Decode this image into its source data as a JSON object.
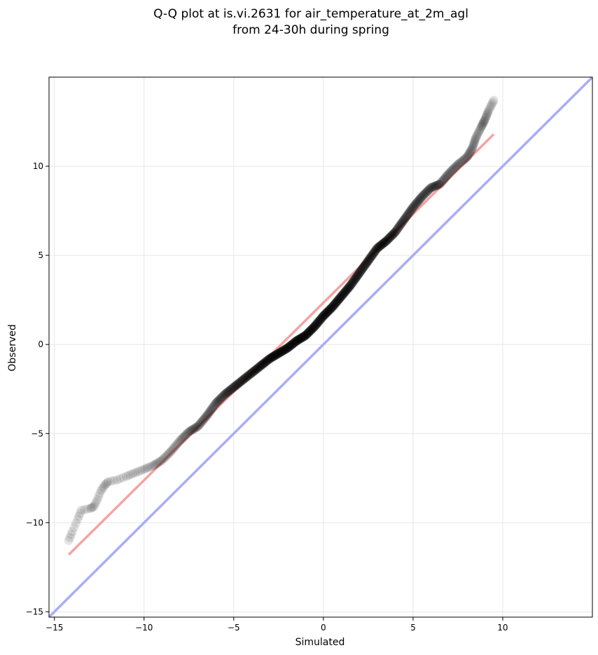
{
  "chart_data": {
    "type": "scatter",
    "title_line1": "Q-Q plot at is.vi.2631 for air_temperature_at_2m_agl",
    "title_line2": "from 24-30h during spring",
    "xlabel": "Simulated",
    "ylabel": "Observed",
    "xlim": [
      -15.3,
      15.0
    ],
    "ylim": [
      -15.3,
      15.0
    ],
    "x_ticks": [
      -15,
      -10,
      -5,
      0,
      5,
      10
    ],
    "y_ticks": [
      -15,
      -10,
      -5,
      0,
      5,
      10
    ],
    "x_tick_labels": [
      "−15",
      "−10",
      "−5",
      "0",
      "5",
      "10"
    ],
    "y_tick_labels": [
      "−15",
      "−10",
      "−5",
      "0",
      "5",
      "10"
    ],
    "grid": true,
    "colors": {
      "points": "#000000",
      "fit_line": "#f4a3a3",
      "identity_line": "#a9adf5",
      "grid": "#e6e6e6"
    },
    "quantile_curve": [
      [
        -14.2,
        -11.0
      ],
      [
        -14.0,
        -10.5
      ],
      [
        -13.7,
        -9.8
      ],
      [
        -13.5,
        -9.3
      ],
      [
        -13.0,
        -9.2
      ],
      [
        -12.8,
        -9.1
      ],
      [
        -12.6,
        -8.7
      ],
      [
        -12.4,
        -8.2
      ],
      [
        -12.2,
        -7.9
      ],
      [
        -12.0,
        -7.7
      ],
      [
        -11.5,
        -7.6
      ],
      [
        -11.0,
        -7.4
      ],
      [
        -10.5,
        -7.2
      ],
      [
        -10.0,
        -7.0
      ],
      [
        -9.5,
        -6.8
      ],
      [
        -9.0,
        -6.5
      ],
      [
        -8.5,
        -6.0
      ],
      [
        -8.0,
        -5.4
      ],
      [
        -7.5,
        -4.9
      ],
      [
        -7.0,
        -4.6
      ],
      [
        -6.5,
        -4.0
      ],
      [
        -6.0,
        -3.3
      ],
      [
        -5.5,
        -2.8
      ],
      [
        -5.0,
        -2.4
      ],
      [
        -4.5,
        -2.0
      ],
      [
        -4.0,
        -1.6
      ],
      [
        -3.5,
        -1.2
      ],
      [
        -3.0,
        -0.8
      ],
      [
        -2.5,
        -0.5
      ],
      [
        -2.0,
        -0.2
      ],
      [
        -1.5,
        0.2
      ],
      [
        -1.0,
        0.5
      ],
      [
        -0.5,
        1.0
      ],
      [
        0.0,
        1.6
      ],
      [
        0.5,
        2.1
      ],
      [
        1.0,
        2.7
      ],
      [
        1.5,
        3.3
      ],
      [
        2.0,
        4.0
      ],
      [
        2.5,
        4.7
      ],
      [
        3.0,
        5.4
      ],
      [
        3.5,
        5.8
      ],
      [
        4.0,
        6.3
      ],
      [
        4.5,
        7.0
      ],
      [
        5.0,
        7.7
      ],
      [
        5.5,
        8.3
      ],
      [
        6.0,
        8.8
      ],
      [
        6.5,
        9.0
      ],
      [
        7.0,
        9.6
      ],
      [
        7.5,
        10.1
      ],
      [
        8.0,
        10.5
      ],
      [
        8.3,
        11.0
      ],
      [
        8.5,
        11.6
      ],
      [
        8.8,
        12.2
      ],
      [
        9.0,
        12.6
      ],
      [
        9.2,
        13.1
      ],
      [
        9.5,
        13.7
      ]
    ],
    "fit_line": {
      "x": [
        -14.2,
        9.5
      ],
      "y": [
        -11.8,
        11.8
      ]
    },
    "identity_line": {
      "x": [
        -15.3,
        15.0
      ],
      "y": [
        -15.3,
        15.0
      ]
    }
  }
}
